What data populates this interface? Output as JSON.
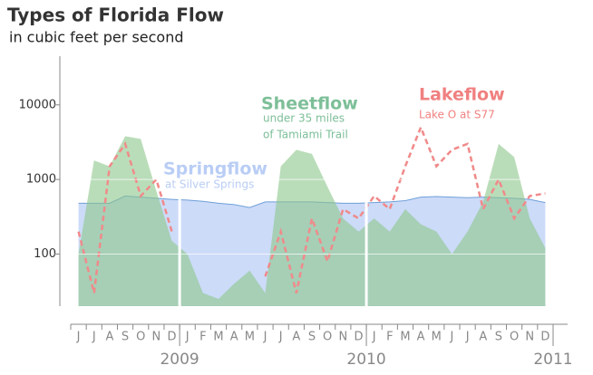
{
  "chart_data": {
    "type": "area",
    "title": "Types of Florida Flow",
    "subtitle": "in cubic feet per second",
    "categories": [
      "J",
      "J",
      "A",
      "S",
      "O",
      "N",
      "D",
      "J",
      "F",
      "M",
      "A",
      "M",
      "J",
      "J",
      "A",
      "S",
      "O",
      "N",
      "D",
      "J",
      "F",
      "M",
      "A",
      "M",
      "J",
      "J",
      "A",
      "S",
      "O",
      "N",
      "D"
    ],
    "year_ticks": [
      {
        "value": 7,
        "label": "2009"
      },
      {
        "value": 19,
        "label": "2010"
      },
      {
        "value": 31,
        "label": "2011"
      }
    ],
    "log_scale": true,
    "grid": true,
    "ylim": [
      20,
      45000
    ],
    "yticks": [
      100,
      1000,
      10000
    ],
    "series": [
      {
        "name": "Springflow",
        "color": "#c9d9f8",
        "line_color": "#6f9fd8",
        "values": [
          480,
          480,
          480,
          600,
          580,
          560,
          540,
          530,
          510,
          480,
          460,
          420,
          500,
          500,
          500,
          500,
          490,
          480,
          480,
          490,
          500,
          520,
          580,
          590,
          580,
          570,
          580,
          570,
          560,
          540,
          490
        ]
      },
      {
        "name": "Sheetflow",
        "color": "#8cc68a",
        "values": [
          100,
          1800,
          1500,
          3800,
          3500,
          700,
          150,
          100,
          30,
          25,
          40,
          60,
          30,
          1500,
          2500,
          2200,
          800,
          300,
          200,
          300,
          200,
          400,
          250,
          200,
          100,
          200,
          500,
          3000,
          2000,
          300,
          120
        ]
      },
      {
        "name": "Lakeflow",
        "color": "#f08a8a",
        "values": [
          200,
          30,
          1500,
          3000,
          600,
          1000,
          200,
          null,
          null,
          null,
          null,
          null,
          50,
          200,
          30,
          300,
          80,
          400,
          300,
          600,
          400,
          1500,
          5000,
          1500,
          2500,
          3000,
          400,
          1000,
          300,
          600,
          650
        ]
      }
    ],
    "annotations": [
      {
        "text": "Sheetflow",
        "sub": [
          "under 35 miles",
          "of Tamiami Trail"
        ],
        "color": "#7dbf98"
      },
      {
        "text": "Springflow",
        "sub": [
          "at Silver Springs"
        ],
        "color": "#b9cdf5"
      },
      {
        "text": "Lakeflow",
        "sub": [
          "Lake O at S77"
        ],
        "color": "#f08080"
      }
    ]
  }
}
